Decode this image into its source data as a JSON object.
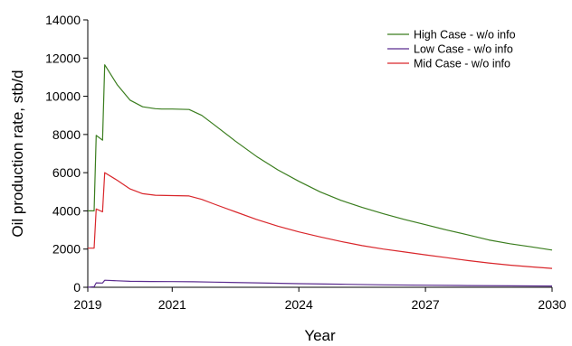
{
  "chart_data": {
    "type": "line",
    "title": "",
    "xlabel": "Year",
    "ylabel": "Oil production rate, stb/d",
    "xlim": [
      2019,
      2030
    ],
    "ylim": [
      0,
      14000
    ],
    "x_ticks": [
      2019,
      2021,
      2024,
      2027,
      2030
    ],
    "x_tick_labels": [
      "2019",
      "2021",
      "2024",
      "2027",
      "2030"
    ],
    "y_ticks": [
      0,
      2000,
      4000,
      6000,
      8000,
      10000,
      12000,
      14000
    ],
    "y_tick_labels": [
      "0",
      "2000",
      "4000",
      "6000",
      "8000",
      "10000",
      "12000",
      "14000"
    ],
    "grid": false,
    "legend_position": "top-right",
    "series": [
      {
        "name": "High Case - w/o info",
        "color": "#3a7d1e",
        "points": [
          [
            2019.0,
            4000
          ],
          [
            2019.15,
            4000
          ],
          [
            2019.2,
            7950
          ],
          [
            2019.35,
            7700
          ],
          [
            2019.4,
            11650
          ],
          [
            2019.7,
            10600
          ],
          [
            2020.0,
            9800
          ],
          [
            2020.3,
            9450
          ],
          [
            2020.6,
            9350
          ],
          [
            2020.75,
            9330
          ],
          [
            2021.0,
            9330
          ],
          [
            2021.4,
            9310
          ],
          [
            2021.7,
            9000
          ],
          [
            2022.0,
            8500
          ],
          [
            2022.5,
            7650
          ],
          [
            2023.0,
            6850
          ],
          [
            2023.5,
            6150
          ],
          [
            2024.0,
            5550
          ],
          [
            2024.5,
            5000
          ],
          [
            2025.0,
            4550
          ],
          [
            2025.5,
            4180
          ],
          [
            2026.0,
            3850
          ],
          [
            2026.5,
            3550
          ],
          [
            2027.0,
            3280
          ],
          [
            2027.5,
            3000
          ],
          [
            2028.0,
            2750
          ],
          [
            2028.5,
            2480
          ],
          [
            2029.0,
            2280
          ],
          [
            2029.5,
            2120
          ],
          [
            2030.0,
            1950
          ]
        ]
      },
      {
        "name": "Low Case - w/o info",
        "color": "#5b2c8f",
        "points": [
          [
            2019.0,
            0
          ],
          [
            2019.15,
            30
          ],
          [
            2019.2,
            230
          ],
          [
            2019.35,
            220
          ],
          [
            2019.4,
            370
          ],
          [
            2019.7,
            340
          ],
          [
            2020.0,
            310
          ],
          [
            2020.5,
            305
          ],
          [
            2021.0,
            300
          ],
          [
            2021.5,
            290
          ],
          [
            2022.0,
            270
          ],
          [
            2023.0,
            230
          ],
          [
            2024.0,
            190
          ],
          [
            2025.0,
            160
          ],
          [
            2026.0,
            130
          ],
          [
            2027.0,
            110
          ],
          [
            2028.0,
            90
          ],
          [
            2029.0,
            75
          ],
          [
            2030.0,
            65
          ]
        ]
      },
      {
        "name": "Mid Case - w/o info",
        "color": "#d9262b",
        "points": [
          [
            2019.0,
            2050
          ],
          [
            2019.15,
            2050
          ],
          [
            2019.2,
            4100
          ],
          [
            2019.35,
            3950
          ],
          [
            2019.4,
            6000
          ],
          [
            2019.7,
            5600
          ],
          [
            2020.0,
            5150
          ],
          [
            2020.3,
            4900
          ],
          [
            2020.6,
            4820
          ],
          [
            2021.0,
            4800
          ],
          [
            2021.4,
            4780
          ],
          [
            2021.7,
            4600
          ],
          [
            2022.0,
            4350
          ],
          [
            2022.5,
            3950
          ],
          [
            2023.0,
            3550
          ],
          [
            2023.5,
            3200
          ],
          [
            2024.0,
            2900
          ],
          [
            2024.5,
            2640
          ],
          [
            2025.0,
            2400
          ],
          [
            2025.5,
            2180
          ],
          [
            2026.0,
            2000
          ],
          [
            2026.5,
            1850
          ],
          [
            2027.0,
            1700
          ],
          [
            2027.5,
            1550
          ],
          [
            2028.0,
            1400
          ],
          [
            2028.5,
            1270
          ],
          [
            2029.0,
            1160
          ],
          [
            2029.5,
            1070
          ],
          [
            2030.0,
            990
          ]
        ]
      }
    ]
  }
}
